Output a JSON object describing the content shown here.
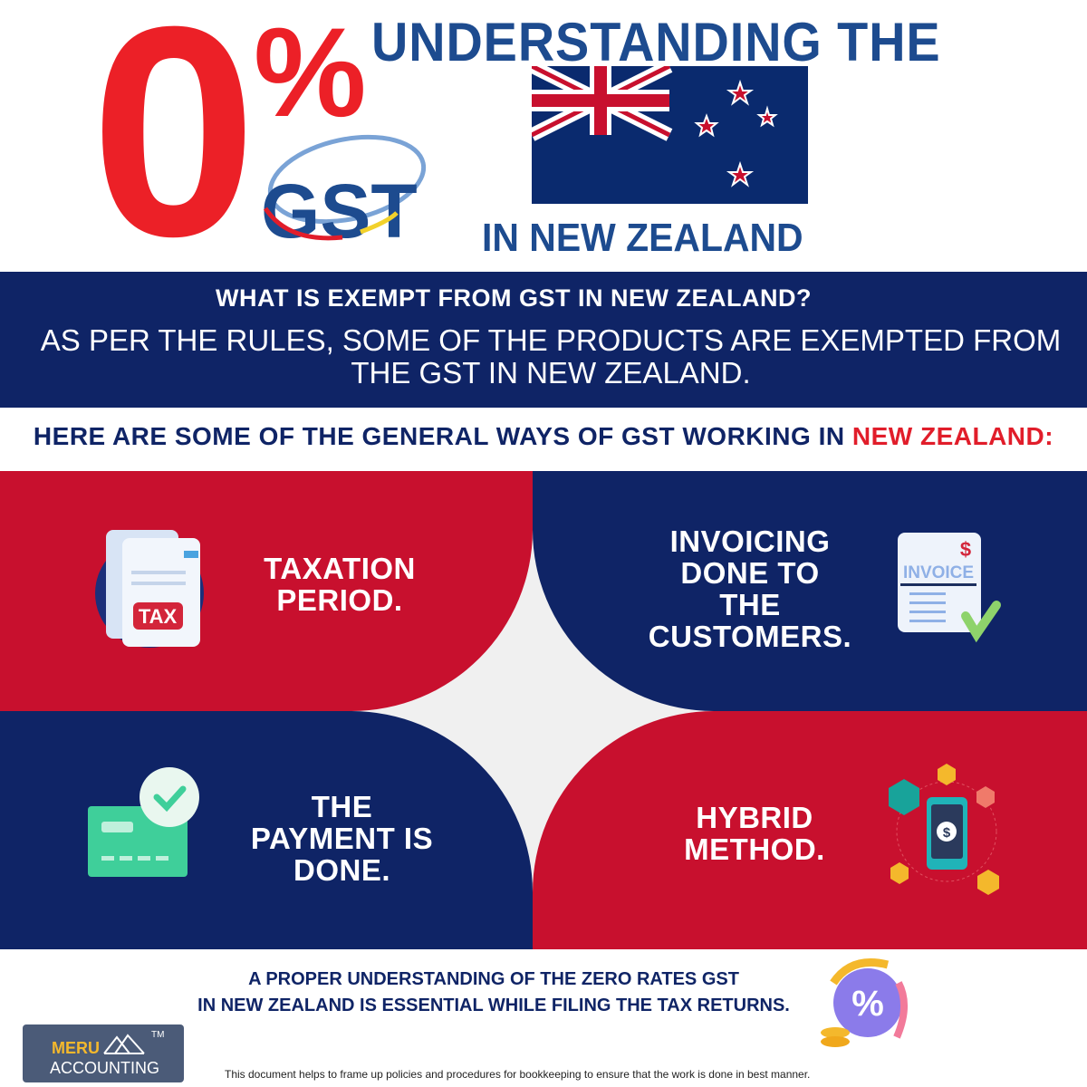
{
  "header": {
    "zero": "0",
    "percent": "%",
    "gst_logo": "GST",
    "title_line1": "UNDERSTANDING THE",
    "title_line2": "IN NEW ZEALAND",
    "flag": "new-zealand-flag"
  },
  "band": {
    "question": "WHAT IS EXEMPT FROM GST IN NEW ZEALAND?",
    "answer_line1": "AS PER THE RULES, SOME OF THE PRODUCTS ARE EXEMPTED FROM",
    "answer_line2": "THE GST IN  NEW ZEALAND."
  },
  "ways": {
    "heading": "HERE ARE SOME OF THE GENERAL WAYS OF GST WORKING IN ",
    "heading_highlight": "NEW ZEALAND:"
  },
  "quadrants": [
    {
      "lines": [
        "TAXATION",
        "PERIOD."
      ],
      "icon": "tax-document-icon",
      "icon_label": "TAX"
    },
    {
      "lines": [
        "INVOICING",
        "DONE TO",
        "THE",
        "CUSTOMERS."
      ],
      "icon": "invoice-icon",
      "icon_label": "INVOICE",
      "icon_symbol": "$"
    },
    {
      "lines": [
        "THE",
        "PAYMENT IS",
        "DONE."
      ],
      "icon": "payment-card-check-icon"
    },
    {
      "lines": [
        "HYBRID",
        "METHOD."
      ],
      "icon": "mobile-finance-icon",
      "icon_symbol": "$"
    }
  ],
  "footer": {
    "line1": "A PROPER UNDERSTANDING OF THE ZERO RATES GST",
    "line2": "IN NEW ZEALAND IS ESSENTIAL WHILE FILING THE TAX RETURNS.",
    "percent_icon": "%",
    "logo_line1": "MERU",
    "logo_line2": "ACCOUNTING",
    "logo_tm": "TM",
    "disclaimer": "This document helps to frame up policies and procedures for bookkeeping to ensure that the work is done in best manner."
  },
  "colors": {
    "navy": "#0f2466",
    "red": "#c8102e",
    "title_blue": "#1d4b8f",
    "bright_red": "#ec2027"
  }
}
